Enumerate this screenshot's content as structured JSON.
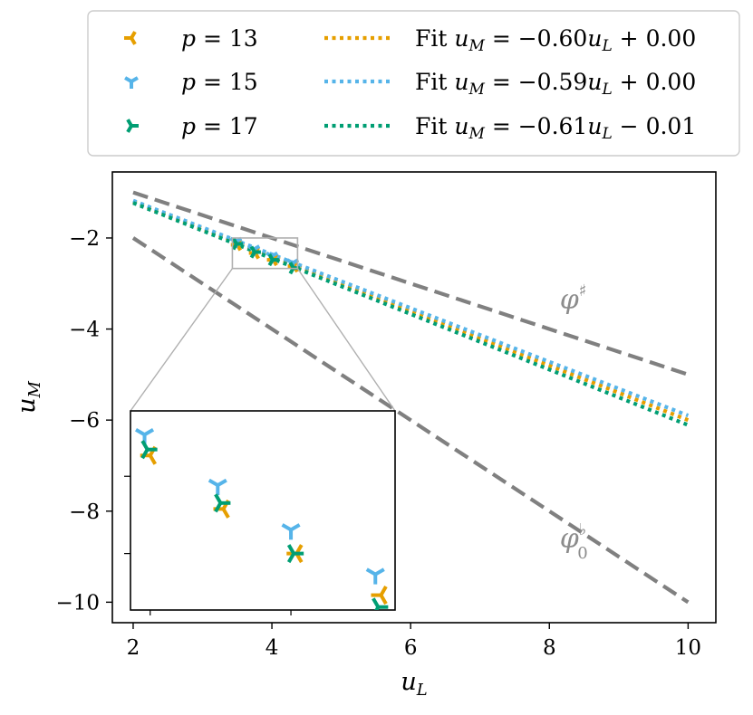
{
  "chart_data": {
    "type": "scatter",
    "xlabel": "u_L",
    "ylabel": "u_M",
    "xlim": [
      1.7,
      10.4
    ],
    "ylim": [
      -10.45,
      -0.55
    ],
    "xticks": [
      2,
      4,
      6,
      8,
      10
    ],
    "xtick_labels": [
      "2",
      "4",
      "6",
      "8",
      "10"
    ],
    "yticks": [
      -2,
      -4,
      -6,
      -8,
      -10
    ],
    "ytick_labels": [
      "−2",
      "−4",
      "−6",
      "−8",
      "−10"
    ],
    "grid": false,
    "legend_position": "top (outside)",
    "series": [
      {
        "name": "p = 13",
        "label_var": "p",
        "label_val": "= 13",
        "color": "#E69F00",
        "marker": "tri-right",
        "x": [
          3.5,
          3.76,
          4.02,
          4.32
        ],
        "y": [
          -2.15,
          -2.33,
          -2.48,
          -2.62
        ]
      },
      {
        "name": "p = 15",
        "label_var": "p",
        "label_val": "= 15",
        "color": "#56B4E9",
        "marker": "tri-up",
        "x": [
          3.48,
          3.74,
          4.0,
          4.3
        ],
        "y": [
          -2.08,
          -2.25,
          -2.4,
          -2.55
        ]
      },
      {
        "name": "p = 17",
        "label_var": "p",
        "label_val": "= 17",
        "color": "#009E73",
        "marker": "tri-left",
        "x": [
          3.49,
          3.75,
          4.01,
          4.31
        ],
        "y": [
          -2.13,
          -2.31,
          -2.48,
          -2.66
        ]
      }
    ],
    "fits": [
      {
        "label": "Fit u_M = −0.60u_L + 0.00",
        "prefix": "Fit ",
        "var": "u",
        "sub": "M",
        "eq": " = −0.60",
        "var2": "u",
        "sub2": "L",
        "rest": " + 0.00",
        "slope": -0.6,
        "intercept": 0.0,
        "color": "#E69F00"
      },
      {
        "label": "Fit u_M = −0.59u_L + 0.00",
        "prefix": "Fit ",
        "var": "u",
        "sub": "M",
        "eq": " = −0.59",
        "var2": "u",
        "sub2": "L",
        "rest": " + 0.00",
        "slope": -0.59,
        "intercept": 0.0,
        "color": "#56B4E9"
      },
      {
        "label": "Fit u_M = −0.61u_L − 0.01",
        "prefix": "Fit ",
        "var": "u",
        "sub": "M",
        "eq": " = −0.61",
        "var2": "u",
        "sub2": "L",
        "rest": " − 0.01",
        "slope": -0.61,
        "intercept": -0.01,
        "color": "#009E73"
      }
    ],
    "reference_lines": [
      {
        "name": "phi-sharp",
        "label": "φ♯",
        "slope": -0.5,
        "intercept": 0.0,
        "color": "#808080"
      },
      {
        "name": "phi-flat-0",
        "label": "φ♭0",
        "slope": -1.0,
        "intercept": 0.0,
        "color": "#808080"
      }
    ],
    "inset": {
      "xlim": [
        3.43,
        4.37
      ],
      "ylim": [
        -2.67,
        -2.0
      ],
      "outline_color": "#b0b0b0"
    },
    "annotations": [
      {
        "text": "φ",
        "sup": "♯",
        "x": 8.15,
        "y": -3.55
      },
      {
        "text": "φ",
        "sup": "♭",
        "sub": "0",
        "x": 8.15,
        "y": -8.8
      }
    ]
  }
}
